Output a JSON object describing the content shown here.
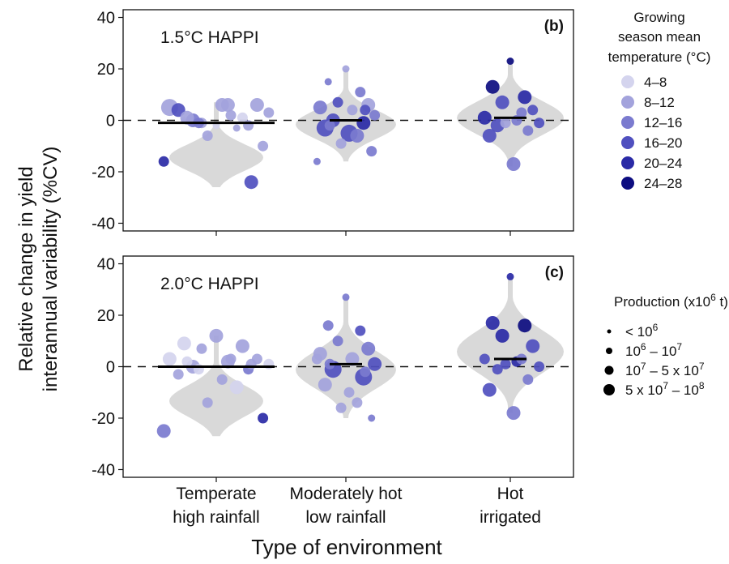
{
  "colors": {
    "violin_fill": "#d9d9d9",
    "temp_palette": [
      "#d4d4ee",
      "#a3a3dc",
      "#7b7bcf",
      "#5050bf",
      "#2a2aa6",
      "#0d0d80"
    ]
  },
  "chart_data": {
    "type": "scatter",
    "subtype": "violin-with-points",
    "xlabel": "Type of environment",
    "ylabel_lines": [
      "Relative change in yield",
      "interannual variability (%CV)"
    ],
    "categories": [
      {
        "line1": "Temperate",
        "line2": "high rainfall"
      },
      {
        "line1": "Moderately hot",
        "line2": "low rainfall"
      },
      {
        "line1": "Hot",
        "line2": "irrigated"
      }
    ],
    "ylim": [
      -43,
      43
    ],
    "yticks": [
      -40,
      -20,
      0,
      20,
      40
    ],
    "zero_line": "dashed",
    "grid": false,
    "panels": [
      {
        "letter": "(b)",
        "title": "1.5°C HAPPI",
        "medians": [
          -1,
          0,
          1
        ],
        "violins": [
          {
            "max": 7,
            "min": -26
          },
          {
            "max": 20,
            "min": -16
          },
          {
            "max": 24,
            "min": -18
          }
        ],
        "points": [
          [
            {
              "y": -2,
              "t": 0,
              "p": 1
            },
            {
              "y": 0,
              "t": 0,
              "p": 1
            },
            {
              "y": 1,
              "t": 0,
              "p": 2
            },
            {
              "y": -1,
              "t": 1,
              "p": 2
            },
            {
              "y": 6,
              "t": 1,
              "p": 3
            },
            {
              "y": 5,
              "t": 1,
              "p": 4
            },
            {
              "y": 6,
              "t": 1,
              "p": 3
            },
            {
              "y": 3,
              "t": 1,
              "p": 2
            },
            {
              "y": 0,
              "t": 2,
              "p": 3
            },
            {
              "y": -2,
              "t": 1,
              "p": 2
            },
            {
              "y": 4,
              "t": 3,
              "p": 3
            },
            {
              "y": 6,
              "t": 1,
              "p": 3
            },
            {
              "y": -3,
              "t": 1,
              "p": 1
            },
            {
              "y": -6,
              "t": 1,
              "p": 2
            },
            {
              "y": -10,
              "t": 1,
              "p": 2
            },
            {
              "y": -16,
              "t": 4,
              "p": 2
            },
            {
              "y": -24,
              "t": 3,
              "p": 3
            },
            {
              "y": 1,
              "t": 1,
              "p": 3
            },
            {
              "y": 2,
              "t": 1,
              "p": 2
            },
            {
              "y": -1,
              "t": 2,
              "p": 2
            }
          ],
          [
            {
              "y": 20,
              "t": 1,
              "p": 1
            },
            {
              "y": 15,
              "t": 2,
              "p": 1
            },
            {
              "y": 11,
              "t": 2,
              "p": 2
            },
            {
              "y": 7,
              "t": 3,
              "p": 2
            },
            {
              "y": 6,
              "t": 1,
              "p": 3
            },
            {
              "y": 5,
              "t": 2,
              "p": 3
            },
            {
              "y": 4,
              "t": 1,
              "p": 2
            },
            {
              "y": 2,
              "t": 2,
              "p": 2
            },
            {
              "y": 0,
              "t": 3,
              "p": 3
            },
            {
              "y": -1,
              "t": 4,
              "p": 3
            },
            {
              "y": -3,
              "t": 3,
              "p": 4
            },
            {
              "y": -5,
              "t": 3,
              "p": 4
            },
            {
              "y": -6,
              "t": 2,
              "p": 3
            },
            {
              "y": -9,
              "t": 1,
              "p": 2
            },
            {
              "y": -12,
              "t": 2,
              "p": 2
            },
            {
              "y": -16,
              "t": 2,
              "p": 1
            },
            {
              "y": 4,
              "t": 3,
              "p": 2
            },
            {
              "y": -2,
              "t": 2,
              "p": 2
            }
          ],
          [
            {
              "y": 23,
              "t": 5,
              "p": 1
            },
            {
              "y": 13,
              "t": 5,
              "p": 3
            },
            {
              "y": 9,
              "t": 4,
              "p": 3
            },
            {
              "y": 7,
              "t": 3,
              "p": 3
            },
            {
              "y": 4,
              "t": 3,
              "p": 2
            },
            {
              "y": 1,
              "t": 4,
              "p": 3
            },
            {
              "y": 0,
              "t": 2,
              "p": 2
            },
            {
              "y": -1,
              "t": 3,
              "p": 2
            },
            {
              "y": -2,
              "t": 3,
              "p": 3
            },
            {
              "y": -4,
              "t": 2,
              "p": 2
            },
            {
              "y": -6,
              "t": 3,
              "p": 3
            },
            {
              "y": -17,
              "t": 2,
              "p": 3
            },
            {
              "y": 3,
              "t": 2,
              "p": 2
            },
            {
              "y": -1,
              "t": 1,
              "p": 2
            }
          ]
        ]
      },
      {
        "letter": "(c)",
        "title": "2.0°C HAPPI",
        "medians": [
          0,
          1,
          3
        ],
        "violins": [
          {
            "max": 12,
            "min": -27
          },
          {
            "max": 27,
            "min": -20
          },
          {
            "max": 35,
            "min": -18
          }
        ],
        "points": [
          [
            {
              "y": 12,
              "t": 1,
              "p": 3
            },
            {
              "y": 9,
              "t": 0,
              "p": 3
            },
            {
              "y": 8,
              "t": 1,
              "p": 3
            },
            {
              "y": 7,
              "t": 1,
              "p": 2
            },
            {
              "y": 3,
              "t": 1,
              "p": 2
            },
            {
              "y": 3,
              "t": 0,
              "p": 3
            },
            {
              "y": 2,
              "t": 1,
              "p": 3
            },
            {
              "y": 1,
              "t": 0,
              "p": 2
            },
            {
              "y": 0,
              "t": 1,
              "p": 3
            },
            {
              "y": -1,
              "t": 2,
              "p": 2
            },
            {
              "y": -3,
              "t": 1,
              "p": 2
            },
            {
              "y": -5,
              "t": 1,
              "p": 2
            },
            {
              "y": -8,
              "t": 0,
              "p": 3
            },
            {
              "y": -14,
              "t": 1,
              "p": 2
            },
            {
              "y": -20,
              "t": 4,
              "p": 2
            },
            {
              "y": -25,
              "t": 2,
              "p": 3
            },
            {
              "y": 1,
              "t": 1,
              "p": 2
            },
            {
              "y": 2,
              "t": 0,
              "p": 2
            },
            {
              "y": 3,
              "t": 1,
              "p": 2
            },
            {
              "y": -1,
              "t": 0,
              "p": 2
            }
          ],
          [
            {
              "y": 27,
              "t": 2,
              "p": 1
            },
            {
              "y": 16,
              "t": 2,
              "p": 2
            },
            {
              "y": 14,
              "t": 3,
              "p": 2
            },
            {
              "y": 10,
              "t": 2,
              "p": 2
            },
            {
              "y": 7,
              "t": 2,
              "p": 3
            },
            {
              "y": 5,
              "t": 1,
              "p": 3
            },
            {
              "y": 3,
              "t": 1,
              "p": 3
            },
            {
              "y": 1,
              "t": 3,
              "p": 3
            },
            {
              "y": -1,
              "t": 3,
              "p": 4
            },
            {
              "y": -4,
              "t": 3,
              "p": 4
            },
            {
              "y": -7,
              "t": 1,
              "p": 3
            },
            {
              "y": -10,
              "t": 1,
              "p": 2
            },
            {
              "y": -14,
              "t": 1,
              "p": 2
            },
            {
              "y": -16,
              "t": 1,
              "p": 2
            },
            {
              "y": -20,
              "t": 2,
              "p": 1
            },
            {
              "y": 3,
              "t": 1,
              "p": 2
            },
            {
              "y": -2,
              "t": 2,
              "p": 2
            },
            {
              "y": 1,
              "t": 2,
              "p": 2
            }
          ],
          [
            {
              "y": 35,
              "t": 4,
              "p": 1
            },
            {
              "y": 17,
              "t": 4,
              "p": 3
            },
            {
              "y": 16,
              "t": 5,
              "p": 3
            },
            {
              "y": 12,
              "t": 4,
              "p": 3
            },
            {
              "y": 8,
              "t": 3,
              "p": 3
            },
            {
              "y": 3,
              "t": 3,
              "p": 2
            },
            {
              "y": 2,
              "t": 4,
              "p": 2
            },
            {
              "y": 0,
              "t": 3,
              "p": 2
            },
            {
              "y": -1,
              "t": 3,
              "p": 2
            },
            {
              "y": -5,
              "t": 2,
              "p": 2
            },
            {
              "y": -9,
              "t": 3,
              "p": 3
            },
            {
              "y": -18,
              "t": 2,
              "p": 3
            },
            {
              "y": 3,
              "t": 2,
              "p": 2
            },
            {
              "y": 1,
              "t": 3,
              "p": 2
            }
          ]
        ]
      }
    ],
    "legend_temperature": {
      "title_lines": [
        "Growing",
        "season mean",
        "temperature (°C)"
      ],
      "entries": [
        "4–8",
        "8–12",
        "12–16",
        "16–20",
        "20–24",
        "24–28"
      ]
    },
    "legend_production": {
      "title_base": "Production (x10",
      "title_sup": "6",
      "title_end": " t)",
      "entries": [
        {
          "base": "< 10",
          "sup": "6",
          "mid": "",
          "sup2": ""
        },
        {
          "base": "10",
          "sup": "6",
          "mid": " – 10",
          "sup2": "7"
        },
        {
          "base": "10",
          "sup": "7",
          "mid": " – 5 x 10",
          "sup2": "7"
        },
        {
          "base": "5 x 10",
          "sup": "7",
          "mid": " – 10",
          "sup2": "8"
        }
      ]
    }
  }
}
